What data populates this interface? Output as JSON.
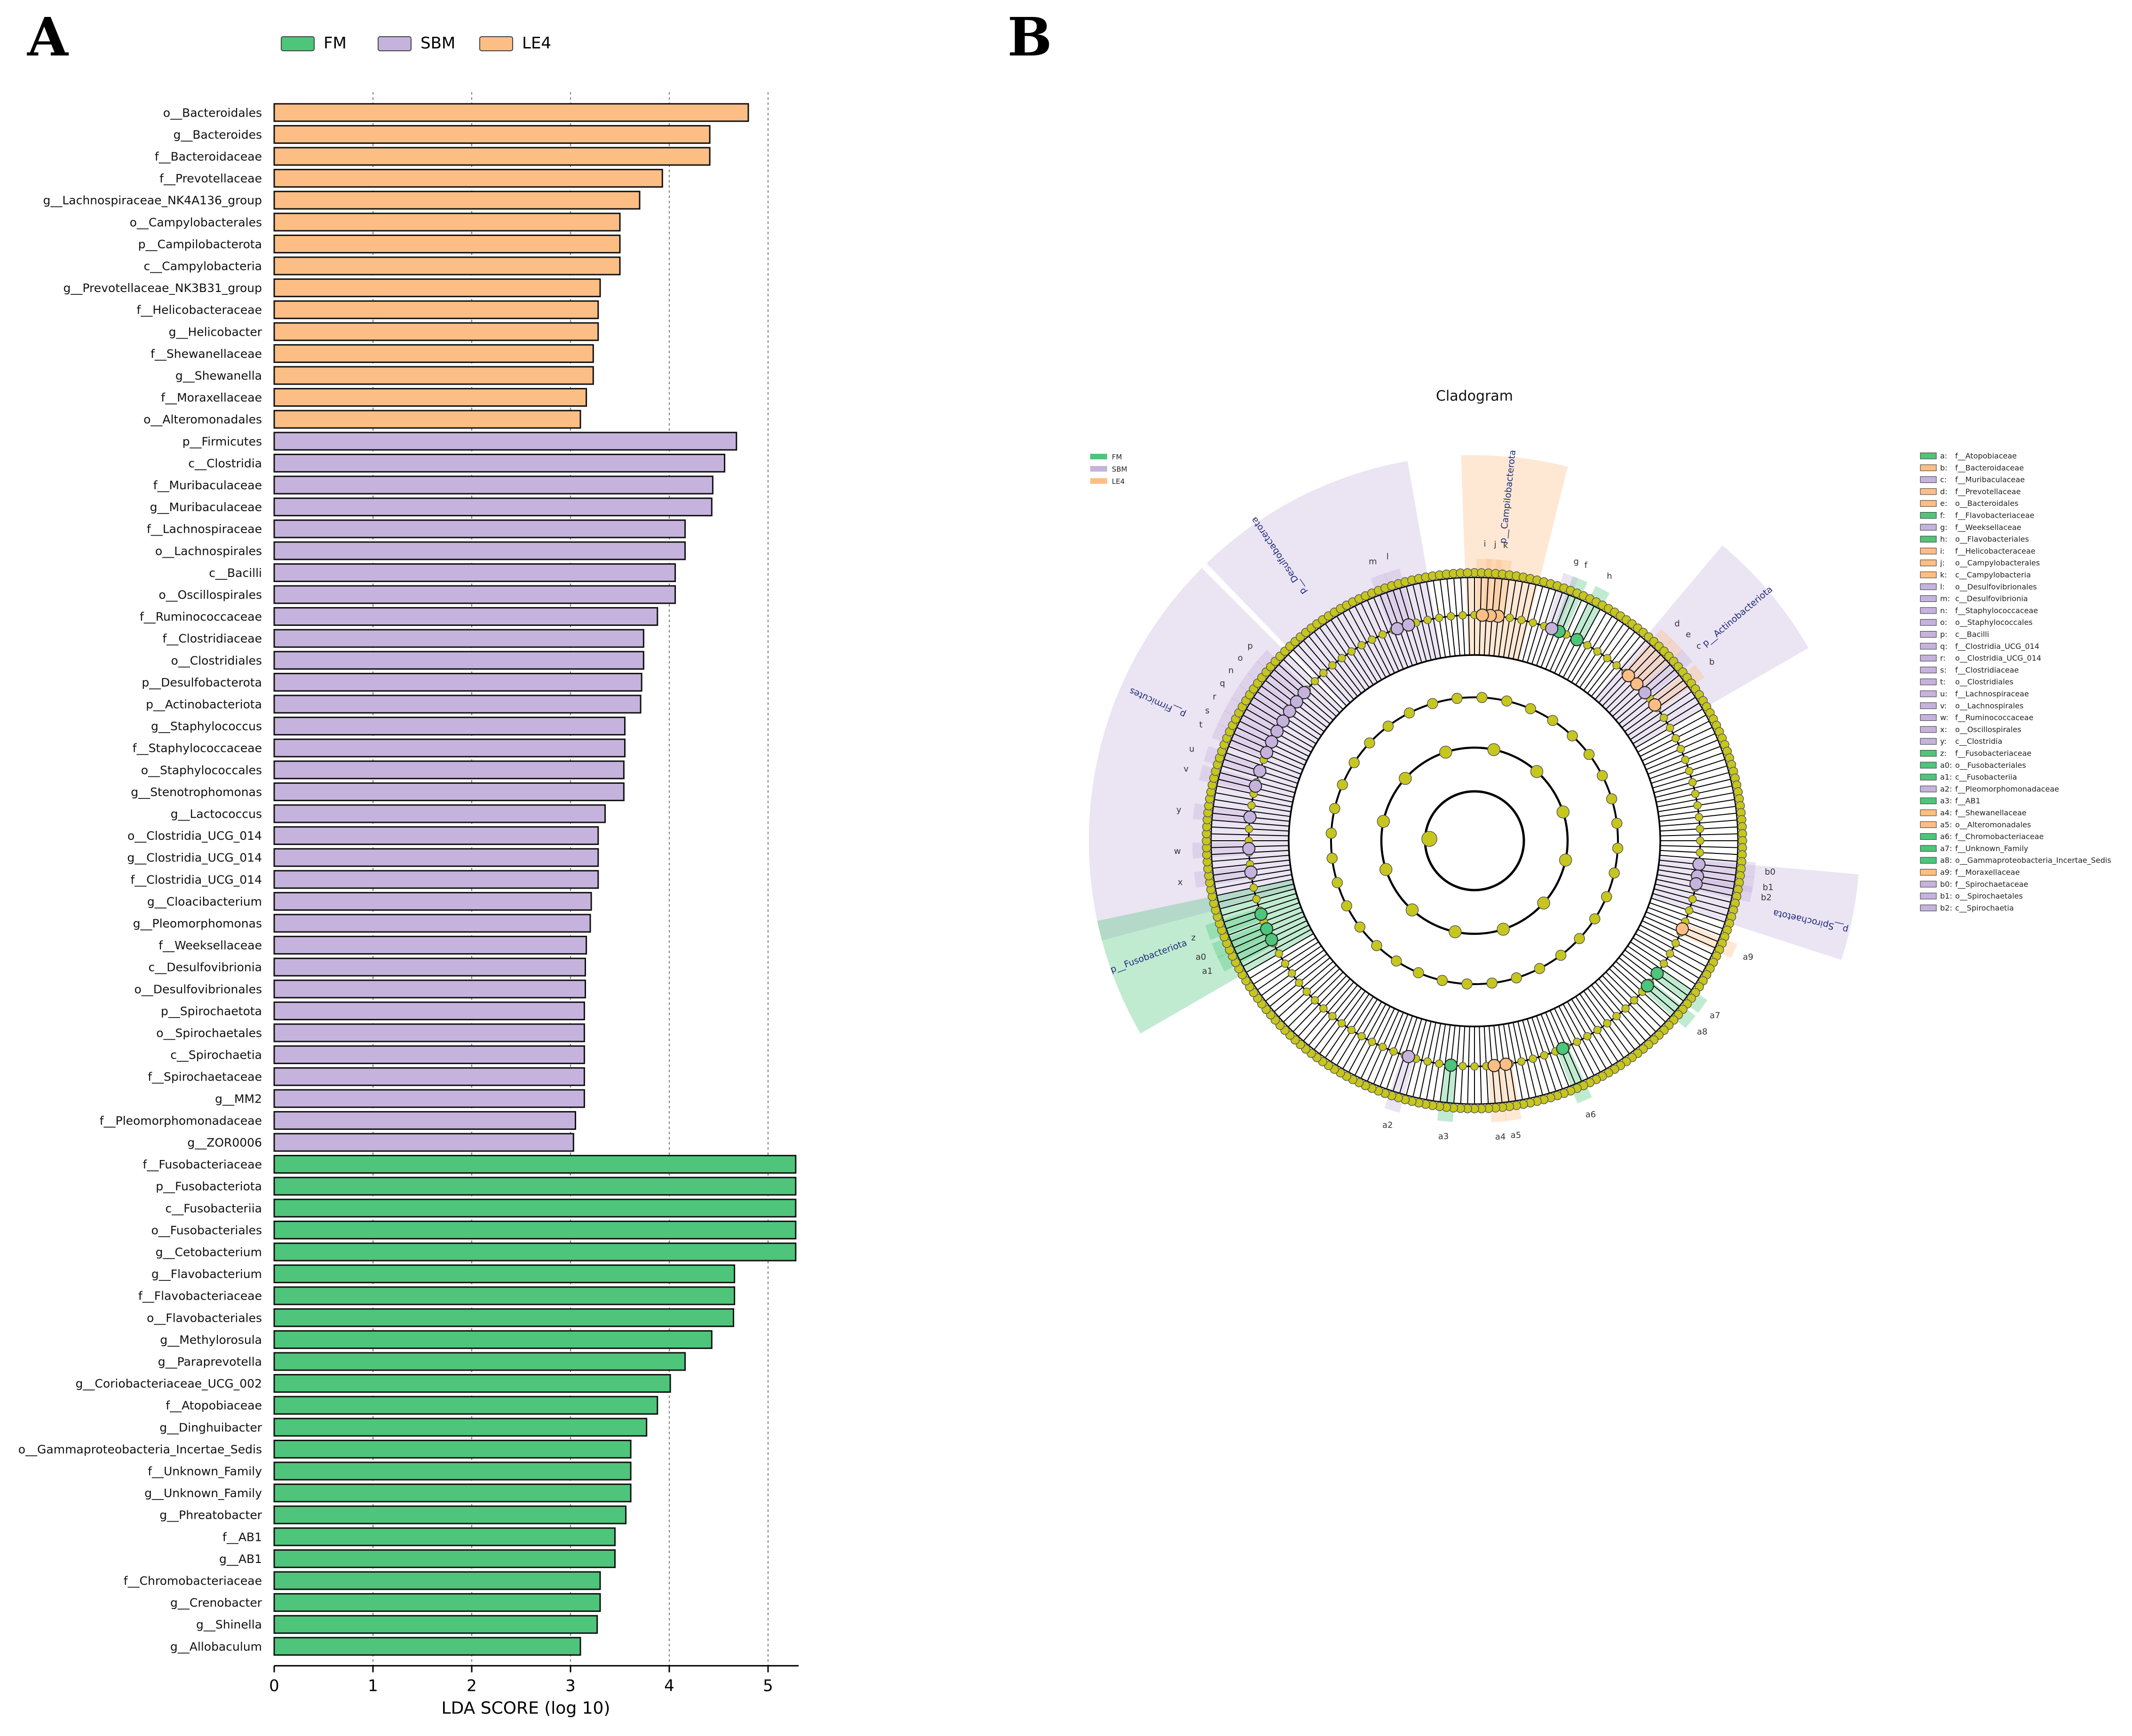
{
  "panels": {
    "a_label": "A",
    "b_label": "B"
  },
  "colors": {
    "FM": "#4ec57a",
    "SBM": "#c5b3dd",
    "LE4": "#fcbe85",
    "node": "#c6c61e",
    "edge": "#000000"
  },
  "chart_data": [
    {
      "type": "bar",
      "orientation": "horizontal",
      "title": "",
      "xlabel": "LDA SCORE (log 10)",
      "ylabel": "",
      "xlim": [
        0,
        5.3
      ],
      "xticks": [
        0,
        1,
        2,
        3,
        4,
        5
      ],
      "grid": "vertical dashed",
      "legend": {
        "placement": "top",
        "entries": [
          "FM",
          "SBM",
          "LE4"
        ]
      },
      "bars": [
        {
          "label": "o__Bacteroidales",
          "value": 4.8,
          "group": "LE4"
        },
        {
          "label": "g__Bacteroides",
          "value": 4.41,
          "group": "LE4"
        },
        {
          "label": "f__Bacteroidaceae",
          "value": 4.41,
          "group": "LE4"
        },
        {
          "label": "f__Prevotellaceae",
          "value": 3.93,
          "group": "LE4"
        },
        {
          "label": "g__Lachnospiraceae_NK4A136_group",
          "value": 3.7,
          "group": "LE4"
        },
        {
          "label": "o__Campylobacterales",
          "value": 3.5,
          "group": "LE4"
        },
        {
          "label": "p__Campilobacterota",
          "value": 3.5,
          "group": "LE4"
        },
        {
          "label": "c__Campylobacteria",
          "value": 3.5,
          "group": "LE4"
        },
        {
          "label": "g__Prevotellaceae_NK3B31_group",
          "value": 3.3,
          "group": "LE4"
        },
        {
          "label": "f__Helicobacteraceae",
          "value": 3.28,
          "group": "LE4"
        },
        {
          "label": "g__Helicobacter",
          "value": 3.28,
          "group": "LE4"
        },
        {
          "label": "f__Shewanellaceae",
          "value": 3.23,
          "group": "LE4"
        },
        {
          "label": "g__Shewanella",
          "value": 3.23,
          "group": "LE4"
        },
        {
          "label": "f__Moraxellaceae",
          "value": 3.16,
          "group": "LE4"
        },
        {
          "label": "o__Alteromonadales",
          "value": 3.1,
          "group": "LE4"
        },
        {
          "label": "p__Firmicutes",
          "value": 4.68,
          "group": "SBM"
        },
        {
          "label": "c__Clostridia",
          "value": 4.56,
          "group": "SBM"
        },
        {
          "label": "f__Muribaculaceae",
          "value": 4.44,
          "group": "SBM"
        },
        {
          "label": "g__Muribaculaceae",
          "value": 4.43,
          "group": "SBM"
        },
        {
          "label": "f__Lachnospiraceae",
          "value": 4.16,
          "group": "SBM"
        },
        {
          "label": "o__Lachnospirales",
          "value": 4.16,
          "group": "SBM"
        },
        {
          "label": "c__Bacilli",
          "value": 4.06,
          "group": "SBM"
        },
        {
          "label": "o__Oscillospirales",
          "value": 4.06,
          "group": "SBM"
        },
        {
          "label": "f__Ruminococcaceae",
          "value": 3.88,
          "group": "SBM"
        },
        {
          "label": "f__Clostridiaceae",
          "value": 3.74,
          "group": "SBM"
        },
        {
          "label": "o__Clostridiales",
          "value": 3.74,
          "group": "SBM"
        },
        {
          "label": "p__Desulfobacterota",
          "value": 3.72,
          "group": "SBM"
        },
        {
          "label": "p__Actinobacteriota",
          "value": 3.71,
          "group": "SBM"
        },
        {
          "label": "g__Staphylococcus",
          "value": 3.55,
          "group": "SBM"
        },
        {
          "label": "f__Staphylococcaceae",
          "value": 3.55,
          "group": "SBM"
        },
        {
          "label": "o__Staphylococcales",
          "value": 3.54,
          "group": "SBM"
        },
        {
          "label": "g__Stenotrophomonas",
          "value": 3.54,
          "group": "SBM"
        },
        {
          "label": "g__Lactococcus",
          "value": 3.35,
          "group": "SBM"
        },
        {
          "label": "o__Clostridia_UCG_014",
          "value": 3.28,
          "group": "SBM"
        },
        {
          "label": "g__Clostridia_UCG_014",
          "value": 3.28,
          "group": "SBM"
        },
        {
          "label": "f__Clostridia_UCG_014",
          "value": 3.28,
          "group": "SBM"
        },
        {
          "label": "g__Cloacibacterium",
          "value": 3.21,
          "group": "SBM"
        },
        {
          "label": "g__Pleomorphomonas",
          "value": 3.2,
          "group": "SBM"
        },
        {
          "label": "f__Weeksellaceae",
          "value": 3.16,
          "group": "SBM"
        },
        {
          "label": "c__Desulfovibrionia",
          "value": 3.15,
          "group": "SBM"
        },
        {
          "label": "o__Desulfovibrionales",
          "value": 3.15,
          "group": "SBM"
        },
        {
          "label": "p__Spirochaetota",
          "value": 3.14,
          "group": "SBM"
        },
        {
          "label": "o__Spirochaetales",
          "value": 3.14,
          "group": "SBM"
        },
        {
          "label": "c__Spirochaetia",
          "value": 3.14,
          "group": "SBM"
        },
        {
          "label": "f__Spirochaetaceae",
          "value": 3.14,
          "group": "SBM"
        },
        {
          "label": "g__MM2",
          "value": 3.14,
          "group": "SBM"
        },
        {
          "label": "f__Pleomorphomonadaceae",
          "value": 3.05,
          "group": "SBM"
        },
        {
          "label": "g__ZOR0006",
          "value": 3.03,
          "group": "SBM"
        },
        {
          "label": "f__Fusobacteriaceae",
          "value": 5.28,
          "group": "FM"
        },
        {
          "label": "p__Fusobacteriota",
          "value": 5.28,
          "group": "FM"
        },
        {
          "label": "c__Fusobacteriia",
          "value": 5.28,
          "group": "FM"
        },
        {
          "label": "o__Fusobacteriales",
          "value": 5.28,
          "group": "FM"
        },
        {
          "label": "g__Cetobacterium",
          "value": 5.28,
          "group": "FM"
        },
        {
          "label": "g__Flavobacterium",
          "value": 4.66,
          "group": "FM"
        },
        {
          "label": "f__Flavobacteriaceae",
          "value": 4.66,
          "group": "FM"
        },
        {
          "label": "o__Flavobacteriales",
          "value": 4.65,
          "group": "FM"
        },
        {
          "label": "g__Methylorosula",
          "value": 4.43,
          "group": "FM"
        },
        {
          "label": "g__Paraprevotella",
          "value": 4.16,
          "group": "FM"
        },
        {
          "label": "g__Coriobacteriaceae_UCG_002",
          "value": 4.01,
          "group": "FM"
        },
        {
          "label": "f__Atopobiaceae",
          "value": 3.88,
          "group": "FM"
        },
        {
          "label": "g__Dinghuibacter",
          "value": 3.77,
          "group": "FM"
        },
        {
          "label": "o__Gammaproteobacteria_Incertae_Sedis",
          "value": 3.61,
          "group": "FM"
        },
        {
          "label": "f__Unknown_Family",
          "value": 3.61,
          "group": "FM"
        },
        {
          "label": "g__Unknown_Family",
          "value": 3.61,
          "group": "FM"
        },
        {
          "label": "g__Phreatobacter",
          "value": 3.56,
          "group": "FM"
        },
        {
          "label": "f__AB1",
          "value": 3.45,
          "group": "FM"
        },
        {
          "label": "g__AB1",
          "value": 3.45,
          "group": "FM"
        },
        {
          "label": "f__Chromobacteriaceae",
          "value": 3.3,
          "group": "FM"
        },
        {
          "label": "g__Crenobacter",
          "value": 3.3,
          "group": "FM"
        },
        {
          "label": "g__Shinella",
          "value": 3.27,
          "group": "FM"
        },
        {
          "label": "g__Allobaculum",
          "value": 3.1,
          "group": "FM"
        }
      ]
    },
    {
      "type": "cladogram",
      "title": "Cladogram",
      "legend": {
        "placement": "top-left",
        "entries": [
          "FM",
          "SBM",
          "LE4"
        ]
      },
      "key": [
        {
          "code": "a",
          "name": "f__Atopobiaceae",
          "group": "FM"
        },
        {
          "code": "b",
          "name": "f__Bacteroidaceae",
          "group": "LE4"
        },
        {
          "code": "c",
          "name": "f__Muribaculaceae",
          "group": "SBM"
        },
        {
          "code": "d",
          "name": "f__Prevotellaceae",
          "group": "LE4"
        },
        {
          "code": "e",
          "name": "o__Bacteroidales",
          "group": "LE4"
        },
        {
          "code": "f",
          "name": "f__Flavobacteriaceae",
          "group": "FM"
        },
        {
          "code": "g",
          "name": "f__Weeksellaceae",
          "group": "SBM"
        },
        {
          "code": "h",
          "name": "o__Flavobacteriales",
          "group": "FM"
        },
        {
          "code": "i",
          "name": "f__Helicobacteraceae",
          "group": "LE4"
        },
        {
          "code": "j",
          "name": "o__Campylobacterales",
          "group": "LE4"
        },
        {
          "code": "k",
          "name": "c__Campylobacteria",
          "group": "LE4"
        },
        {
          "code": "l",
          "name": "o__Desulfovibrionales",
          "group": "SBM"
        },
        {
          "code": "m",
          "name": "c__Desulfovibrionia",
          "group": "SBM"
        },
        {
          "code": "n",
          "name": "f__Staphylococcaceae",
          "group": "SBM"
        },
        {
          "code": "o",
          "name": "o__Staphylococcales",
          "group": "SBM"
        },
        {
          "code": "p",
          "name": "c__Bacilli",
          "group": "SBM"
        },
        {
          "code": "q",
          "name": "f__Clostridia_UCG_014",
          "group": "SBM"
        },
        {
          "code": "r",
          "name": "o__Clostridia_UCG_014",
          "group": "SBM"
        },
        {
          "code": "s",
          "name": "f__Clostridiaceae",
          "group": "SBM"
        },
        {
          "code": "t",
          "name": "o__Clostridiales",
          "group": "SBM"
        },
        {
          "code": "u",
          "name": "f__Lachnospiraceae",
          "group": "SBM"
        },
        {
          "code": "v",
          "name": "o__Lachnospirales",
          "group": "SBM"
        },
        {
          "code": "w",
          "name": "f__Ruminococcaceae",
          "group": "SBM"
        },
        {
          "code": "x",
          "name": "o__Oscillospirales",
          "group": "SBM"
        },
        {
          "code": "y",
          "name": "c__Clostridia",
          "group": "SBM"
        },
        {
          "code": "z",
          "name": "f__Fusobacteriaceae",
          "group": "FM"
        },
        {
          "code": "a0",
          "name": "o__Fusobacteriales",
          "group": "FM"
        },
        {
          "code": "a1",
          "name": "c__Fusobacteriia",
          "group": "FM"
        },
        {
          "code": "a2",
          "name": "f__Pleomorphomonadaceae",
          "group": "SBM"
        },
        {
          "code": "a3",
          "name": "f__AB1",
          "group": "FM"
        },
        {
          "code": "a4",
          "name": "f__Shewanellaceae",
          "group": "LE4"
        },
        {
          "code": "a5",
          "name": "o__Alteromonadales",
          "group": "LE4"
        },
        {
          "code": "a6",
          "name": "f__Chromobacteriaceae",
          "group": "FM"
        },
        {
          "code": "a7",
          "name": "f__Unknown_Family",
          "group": "FM"
        },
        {
          "code": "a8",
          "name": "o__Gammaproteobacteria_Incertae_Sedis",
          "group": "FM"
        },
        {
          "code": "a9",
          "name": "f__Moraxellaceae",
          "group": "LE4"
        },
        {
          "code": "b0",
          "name": "f__Spirochaetaceae",
          "group": "SBM"
        },
        {
          "code": "b1",
          "name": "o__Spirochaetales",
          "group": "SBM"
        },
        {
          "code": "b2",
          "name": "c__Spirochaetia",
          "group": "SBM"
        }
      ],
      "phyla": [
        {
          "name": "p__Campilobacterota",
          "group": "LE4",
          "angle": 6
        },
        {
          "name": "p__Desulfobacterota",
          "group": "SBM",
          "angle": -34
        },
        {
          "name": "p__Actinobacteriota",
          "group": "SBM",
          "angle": 50
        },
        {
          "name": "p__Firmicutes",
          "group": "SBM",
          "angle": -66
        },
        {
          "name": "p__Spirochaetota",
          "group": "SBM",
          "angle": 103
        },
        {
          "name": "p__Fusobacteriota",
          "group": "FM",
          "angle": 250
        }
      ],
      "clade_labels": [
        {
          "code": "f",
          "group": "FM",
          "angle": 22
        },
        {
          "code": "h",
          "group": "FM",
          "angle": 27
        },
        {
          "code": "g",
          "group": "SBM",
          "angle": 20
        },
        {
          "code": "k",
          "group": "LE4",
          "angle": 6
        },
        {
          "code": "j",
          "group": "LE4",
          "angle": 4
        },
        {
          "code": "i",
          "group": "LE4",
          "angle": 2
        },
        {
          "code": "e",
          "group": "LE4",
          "angle": 46
        },
        {
          "code": "d",
          "group": "LE4",
          "angle": 43
        },
        {
          "code": "b",
          "group": "LE4",
          "angle": 53
        },
        {
          "code": "c",
          "group": "SBM",
          "angle": 49
        },
        {
          "code": "m",
          "group": "SBM",
          "angle": -20
        },
        {
          "code": "l",
          "group": "SBM",
          "angle": -17
        },
        {
          "code": "p",
          "group": "SBM",
          "angle": -49
        },
        {
          "code": "o",
          "group": "SBM",
          "angle": -52
        },
        {
          "code": "n",
          "group": "SBM",
          "angle": -55
        },
        {
          "code": "q",
          "group": "SBM",
          "angle": -58
        },
        {
          "code": "r",
          "group": "SBM",
          "angle": -61
        },
        {
          "code": "s",
          "group": "SBM",
          "angle": -64
        },
        {
          "code": "t",
          "group": "SBM",
          "angle": -67
        },
        {
          "code": "u",
          "group": "SBM",
          "angle": -72
        },
        {
          "code": "v",
          "group": "SBM",
          "angle": -76
        },
        {
          "code": "y",
          "group": "SBM",
          "angle": -84
        },
        {
          "code": "w",
          "group": "SBM",
          "angle": -92
        },
        {
          "code": "x",
          "group": "SBM",
          "angle": -98
        },
        {
          "code": "b0",
          "group": "SBM",
          "angle": 96
        },
        {
          "code": "b1",
          "group": "SBM",
          "angle": 99
        },
        {
          "code": "b2",
          "group": "SBM",
          "angle": 101
        },
        {
          "code": "a9",
          "group": "LE4",
          "angle": 113
        },
        {
          "code": "a7",
          "group": "FM",
          "angle": 126
        },
        {
          "code": "a8",
          "group": "FM",
          "angle": 130
        },
        {
          "code": "a6",
          "group": "FM",
          "angle": 157
        },
        {
          "code": "a5",
          "group": "LE4",
          "angle": 172
        },
        {
          "code": "a4",
          "group": "LE4",
          "angle": 175
        },
        {
          "code": "a3",
          "group": "FM",
          "angle": 186
        },
        {
          "code": "a2",
          "group": "SBM",
          "angle": 197
        },
        {
          "code": "a0",
          "group": "FM",
          "angle": 247
        },
        {
          "code": "z",
          "group": "FM",
          "angle": 251
        },
        {
          "code": "a1",
          "group": "FM",
          "angle": 244
        }
      ]
    }
  ]
}
